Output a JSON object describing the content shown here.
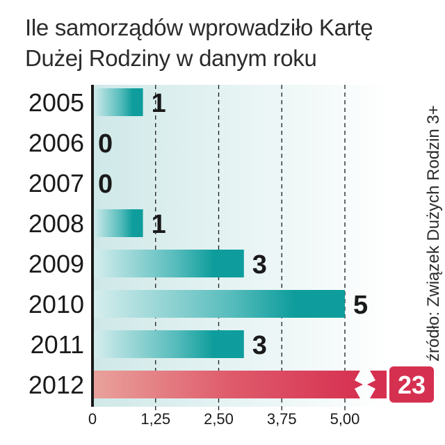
{
  "title_lines": [
    "Ile samorządów wprowadziło Kartę",
    "Dużej Rodziny w danym roku"
  ],
  "source": "źródło: Związek Dużych Rodzin 3+",
  "colors": {
    "bar_teal": "#0e9d9c",
    "bar_red": "#d63050",
    "background_band": "#e4f3f3",
    "axis": "#1a1a1a"
  },
  "chart_data": {
    "type": "bar",
    "orientation": "horizontal",
    "categories": [
      "2005",
      "2006",
      "2007",
      "2008",
      "2009",
      "2010",
      "2011",
      "2012"
    ],
    "values": [
      1,
      0,
      0,
      1,
      3,
      5,
      3,
      23
    ],
    "value_labels": [
      "1",
      "0",
      "0",
      "1",
      "3",
      "5",
      "3",
      "23"
    ],
    "x_ticks": [
      "0",
      "1,25",
      "2,50",
      "3,75",
      "5,00"
    ],
    "x_tick_values": [
      0,
      1.25,
      2.5,
      3.75,
      5
    ],
    "xlim": [
      0,
      5
    ],
    "axis_break_value": 23,
    "gridlines": "dashed vertical",
    "xlabel": "",
    "ylabel": ""
  }
}
